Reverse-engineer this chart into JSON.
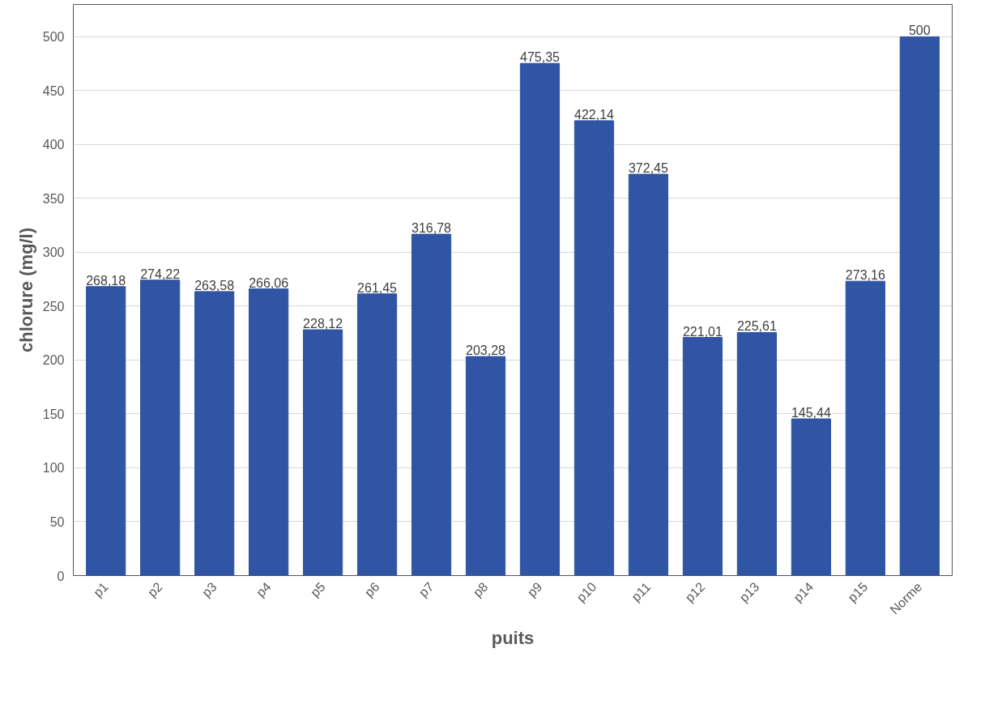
{
  "chart_data": {
    "type": "bar",
    "xlabel": "puits",
    "ylabel": "chlorure (mg/l)",
    "categories": [
      "p1",
      "p2",
      "p3",
      "p4",
      "p5",
      "p6",
      "p7",
      "p8",
      "p9",
      "p10",
      "p11",
      "p12",
      "p13",
      "p14",
      "p15",
      "Norme"
    ],
    "values": [
      268.18,
      274.22,
      263.58,
      266.06,
      228.12,
      261.45,
      316.78,
      203.28,
      475.35,
      422.14,
      372.45,
      221.01,
      225.61,
      145.44,
      273.16,
      500
    ],
    "value_labels": [
      "268,18",
      "274,22",
      "263,58",
      "266,06",
      "228,12",
      "261,45",
      "316,78",
      "203,28",
      "475,35",
      "422,14",
      "372,45",
      "221,01",
      "225,61",
      "145,44",
      "273,16",
      "500"
    ],
    "color": "#2f55a4",
    "ylim": [
      0,
      530
    ],
    "yticks": [
      0,
      50,
      100,
      150,
      200,
      250,
      300,
      350,
      400,
      450,
      500
    ],
    "grid": "y"
  }
}
